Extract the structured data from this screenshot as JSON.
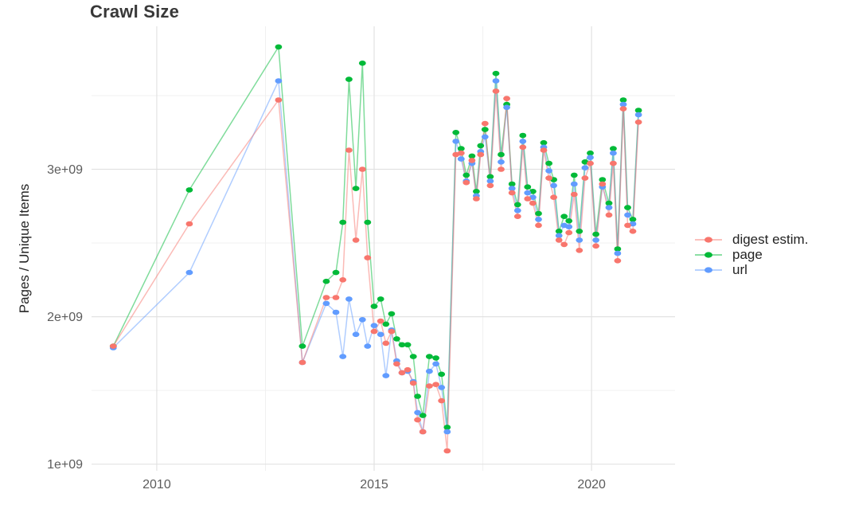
{
  "title": "Crawl Size",
  "y_axis_title": "Pages / Unique Items",
  "chart_data": {
    "type": "line",
    "title": "Crawl Size",
    "xlabel": "",
    "ylabel": "Pages / Unique Items",
    "grid": true,
    "legend_position": "right",
    "xlim": [
      2008.5,
      2021.92
    ],
    "ylim_e9": [
      0.955,
      3.97
    ],
    "x_ticks": [
      2010,
      2015,
      2020
    ],
    "x_tick_labels": [
      "2010",
      "2015",
      "2020"
    ],
    "x_minor_ticks": [
      2012.5,
      2017.5
    ],
    "y_ticks_e9": [
      1,
      2,
      3
    ],
    "y_tick_labels": [
      "1e+09",
      "2e+09",
      "3e+09"
    ],
    "y_minor_ticks_e9": [
      1.5,
      2.5,
      3.5
    ],
    "x": [
      2009.0,
      2010.75,
      2012.8,
      2013.35,
      2013.9,
      2014.12,
      2014.28,
      2014.42,
      2014.58,
      2014.73,
      2014.85,
      2015.0,
      2015.15,
      2015.27,
      2015.4,
      2015.52,
      2015.64,
      2015.77,
      2015.9,
      2016.0,
      2016.12,
      2016.27,
      2016.42,
      2016.55,
      2016.68,
      2016.88,
      2017.0,
      2017.12,
      2017.25,
      2017.35,
      2017.45,
      2017.55,
      2017.67,
      2017.8,
      2017.92,
      2018.05,
      2018.17,
      2018.3,
      2018.42,
      2018.53,
      2018.65,
      2018.78,
      2018.9,
      2019.02,
      2019.13,
      2019.25,
      2019.37,
      2019.48,
      2019.6,
      2019.72,
      2019.85,
      2019.97,
      2020.1,
      2020.25,
      2020.4,
      2020.5,
      2020.6,
      2020.73,
      2020.83,
      2020.95,
      2021.08
    ],
    "series": [
      {
        "name": "digest estim.",
        "color": "#F8766D",
        "values_e9": [
          1.8,
          2.63,
          3.47,
          1.69,
          2.13,
          2.13,
          2.25,
          3.13,
          2.52,
          3.0,
          2.4,
          1.9,
          1.97,
          1.82,
          1.9,
          1.68,
          1.62,
          1.64,
          1.55,
          1.3,
          1.22,
          1.53,
          1.54,
          1.43,
          1.09,
          3.1,
          3.11,
          2.91,
          3.06,
          2.8,
          3.1,
          3.31,
          2.89,
          3.53,
          3.0,
          3.48,
          2.84,
          2.68,
          3.15,
          2.8,
          2.77,
          2.62,
          3.13,
          2.94,
          2.81,
          2.52,
          2.49,
          2.57,
          2.83,
          2.45,
          2.94,
          3.04,
          2.48,
          2.9,
          2.69,
          3.04,
          2.38,
          3.41,
          2.62,
          2.58,
          3.32
        ]
      },
      {
        "name": "page",
        "color": "#00BA38",
        "values_e9": [
          1.8,
          2.86,
          3.83,
          1.8,
          2.24,
          2.3,
          2.64,
          3.61,
          2.87,
          3.72,
          2.64,
          2.07,
          2.12,
          1.95,
          2.02,
          1.85,
          1.81,
          1.81,
          1.73,
          1.46,
          1.33,
          1.73,
          1.72,
          1.61,
          1.25,
          3.25,
          3.14,
          2.96,
          3.09,
          2.85,
          3.16,
          3.27,
          2.95,
          3.65,
          3.1,
          3.44,
          2.9,
          2.76,
          3.23,
          2.88,
          2.85,
          2.7,
          3.18,
          3.04,
          2.93,
          2.58,
          2.68,
          2.65,
          2.96,
          2.58,
          3.05,
          3.11,
          2.56,
          2.93,
          2.77,
          3.14,
          2.46,
          3.47,
          2.74,
          2.66,
          3.4
        ]
      },
      {
        "name": "url",
        "color": "#619CFF",
        "values_e9": [
          1.79,
          2.3,
          3.6,
          1.69,
          2.09,
          2.03,
          1.73,
          2.12,
          1.88,
          1.98,
          1.8,
          1.94,
          1.88,
          1.6,
          1.91,
          1.7,
          1.62,
          1.63,
          1.56,
          1.35,
          1.22,
          1.63,
          1.68,
          1.52,
          1.22,
          3.19,
          3.07,
          2.92,
          3.04,
          2.82,
          3.12,
          3.22,
          2.92,
          3.6,
          3.05,
          3.42,
          2.87,
          2.72,
          3.19,
          2.84,
          2.81,
          2.66,
          3.15,
          2.99,
          2.89,
          2.55,
          2.62,
          2.61,
          2.9,
          2.52,
          3.01,
          3.08,
          2.52,
          2.88,
          2.74,
          3.11,
          2.43,
          3.44,
          2.69,
          2.63,
          3.37
        ]
      }
    ]
  }
}
